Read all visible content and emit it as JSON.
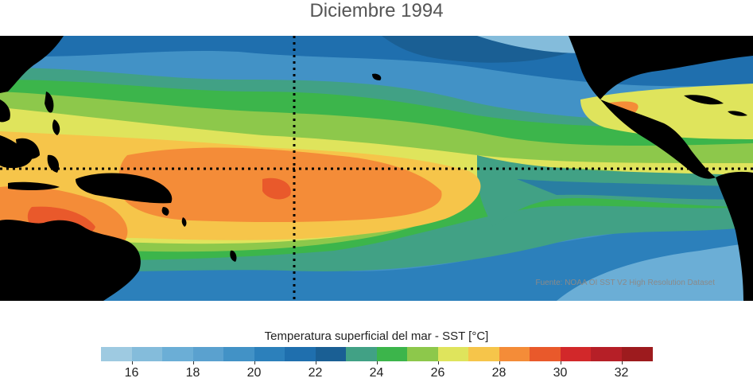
{
  "title": "Diciembre 1994",
  "source": "Fuente: NOAA OI SST V2 High Resolution Dataset",
  "colorbar": {
    "label": "Temperatura superficial del mar - SST  [°C]",
    "min": 15,
    "max": 33,
    "colors": [
      "#9ecae1",
      "#84bcdb",
      "#6baed6",
      "#5aa1cf",
      "#4292c6",
      "#2c80bb",
      "#1f6fae",
      "#1a5f94",
      "#41a185",
      "#3cb54b",
      "#8dc84b",
      "#dfe45c",
      "#f6c54a",
      "#f48c38",
      "#e9592b",
      "#d2282a",
      "#b61f27",
      "#9d1b1e"
    ],
    "ticks": [
      "16",
      "18",
      "20",
      "22",
      "24",
      "26",
      "28",
      "30",
      "32"
    ]
  },
  "map_features": {
    "land_color": "#000000",
    "grid_lines": "dotted equator and 180° meridian"
  }
}
